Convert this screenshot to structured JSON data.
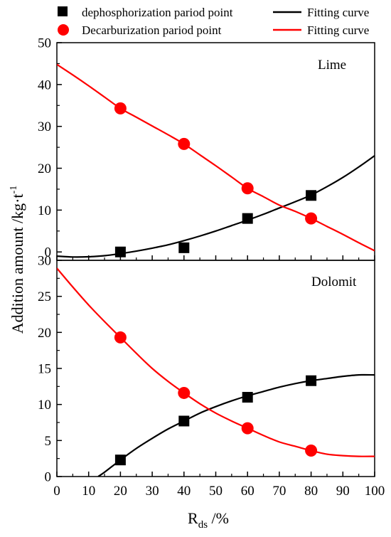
{
  "legend": {
    "items": [
      {
        "label": "dephosphorization pariod point",
        "marker": "square",
        "color": "#000000"
      },
      {
        "label": "Fitting curve",
        "marker": "line",
        "color": "#000000"
      },
      {
        "label": "Decarburization pariod point",
        "marker": "circle",
        "color": "#ff0000"
      },
      {
        "label": "Fitting curve",
        "marker": "line",
        "color": "#ff0000"
      }
    ]
  },
  "axes": {
    "ylabel_main": "Addition amount /kg·t",
    "ylabel_sup": "-1",
    "xlabel_main": "R",
    "xlabel_sub": "ds",
    "xlabel_tail": " /%"
  },
  "chart_data": [
    {
      "type": "scatter",
      "panel_label": "Lime",
      "xlim": [
        0,
        100
      ],
      "ylim": [
        -2,
        50
      ],
      "yticks": [
        "0",
        "10",
        "20",
        "30",
        "40",
        "50"
      ],
      "grid": false,
      "series": [
        {
          "name": "dephosphorization pariod point",
          "color": "#000000",
          "marker": "square",
          "x": [
            20,
            40,
            60,
            80
          ],
          "y": [
            0,
            1,
            8,
            13.5
          ]
        },
        {
          "name": "Decarburization pariod point",
          "color": "#ff0000",
          "marker": "circle",
          "x": [
            20,
            40,
            60,
            80
          ],
          "y": [
            34.3,
            25.8,
            15.2,
            8
          ]
        }
      ],
      "fits": [
        {
          "name": "Fitting curve",
          "color": "#000000",
          "x": [
            0,
            5,
            10,
            15,
            20,
            25,
            30,
            35,
            40,
            45,
            50,
            55,
            60,
            65,
            70,
            75,
            80,
            85,
            90,
            95,
            100
          ],
          "y": [
            -1.0,
            -1.2,
            -1.15,
            -0.9,
            -0.4,
            0.2,
            0.9,
            1.7,
            2.7,
            3.8,
            5.0,
            6.3,
            7.6,
            9.0,
            10.5,
            12.0,
            13.6,
            15.6,
            17.8,
            20.3,
            23.0
          ]
        },
        {
          "name": "Fitting curve",
          "color": "#ff0000",
          "x": [
            0,
            5,
            10,
            15,
            20,
            25,
            30,
            35,
            40,
            45,
            50,
            55,
            60,
            65,
            70,
            75,
            80,
            85,
            90,
            95,
            100
          ],
          "y": [
            44.8,
            42.3,
            39.7,
            37.0,
            34.3,
            32.2,
            30.1,
            28.0,
            25.8,
            23.2,
            20.6,
            17.9,
            15.2,
            13.2,
            11.2,
            9.7,
            8.0,
            6.1,
            4.2,
            2.2,
            0.3
          ]
        }
      ]
    },
    {
      "type": "scatter",
      "panel_label": "Dolomit",
      "xlim": [
        0,
        100
      ],
      "ylim": [
        0,
        30
      ],
      "xticks": [
        "0",
        "10",
        "20",
        "30",
        "40",
        "50",
        "60",
        "70",
        "80",
        "90",
        "100"
      ],
      "yticks": [
        "0",
        "5",
        "10",
        "15",
        "20",
        "25",
        "30"
      ],
      "grid": false,
      "series": [
        {
          "name": "dephosphorization pariod point",
          "color": "#000000",
          "marker": "square",
          "x": [
            20,
            40,
            60,
            80
          ],
          "y": [
            2.3,
            7.7,
            11,
            13.3
          ]
        },
        {
          "name": "Decarburization pariod point",
          "color": "#ff0000",
          "marker": "circle",
          "x": [
            20,
            40,
            60,
            80
          ],
          "y": [
            19.3,
            11.6,
            6.7,
            3.6
          ]
        }
      ],
      "fits": [
        {
          "name": "Fitting curve",
          "color": "#000000",
          "x": [
            13,
            15,
            20,
            25,
            30,
            35,
            40,
            45,
            50,
            55,
            60,
            65,
            70,
            75,
            80,
            85,
            90,
            95,
            100
          ],
          "y": [
            0.0,
            0.6,
            2.3,
            3.9,
            5.3,
            6.6,
            7.7,
            8.8,
            9.7,
            10.5,
            11.2,
            11.8,
            12.4,
            12.9,
            13.3,
            13.6,
            13.9,
            14.1,
            14.1
          ]
        },
        {
          "name": "Fitting curve",
          "color": "#ff0000",
          "x": [
            0,
            5,
            10,
            15,
            20,
            25,
            30,
            35,
            40,
            45,
            50,
            55,
            60,
            65,
            70,
            75,
            80,
            85,
            90,
            95,
            100
          ],
          "y": [
            28.9,
            26.3,
            23.8,
            21.5,
            19.3,
            17.1,
            15.0,
            13.2,
            11.6,
            10.1,
            8.8,
            7.7,
            6.7,
            5.7,
            4.8,
            4.2,
            3.6,
            3.1,
            2.9,
            2.8,
            2.8
          ]
        }
      ]
    }
  ]
}
